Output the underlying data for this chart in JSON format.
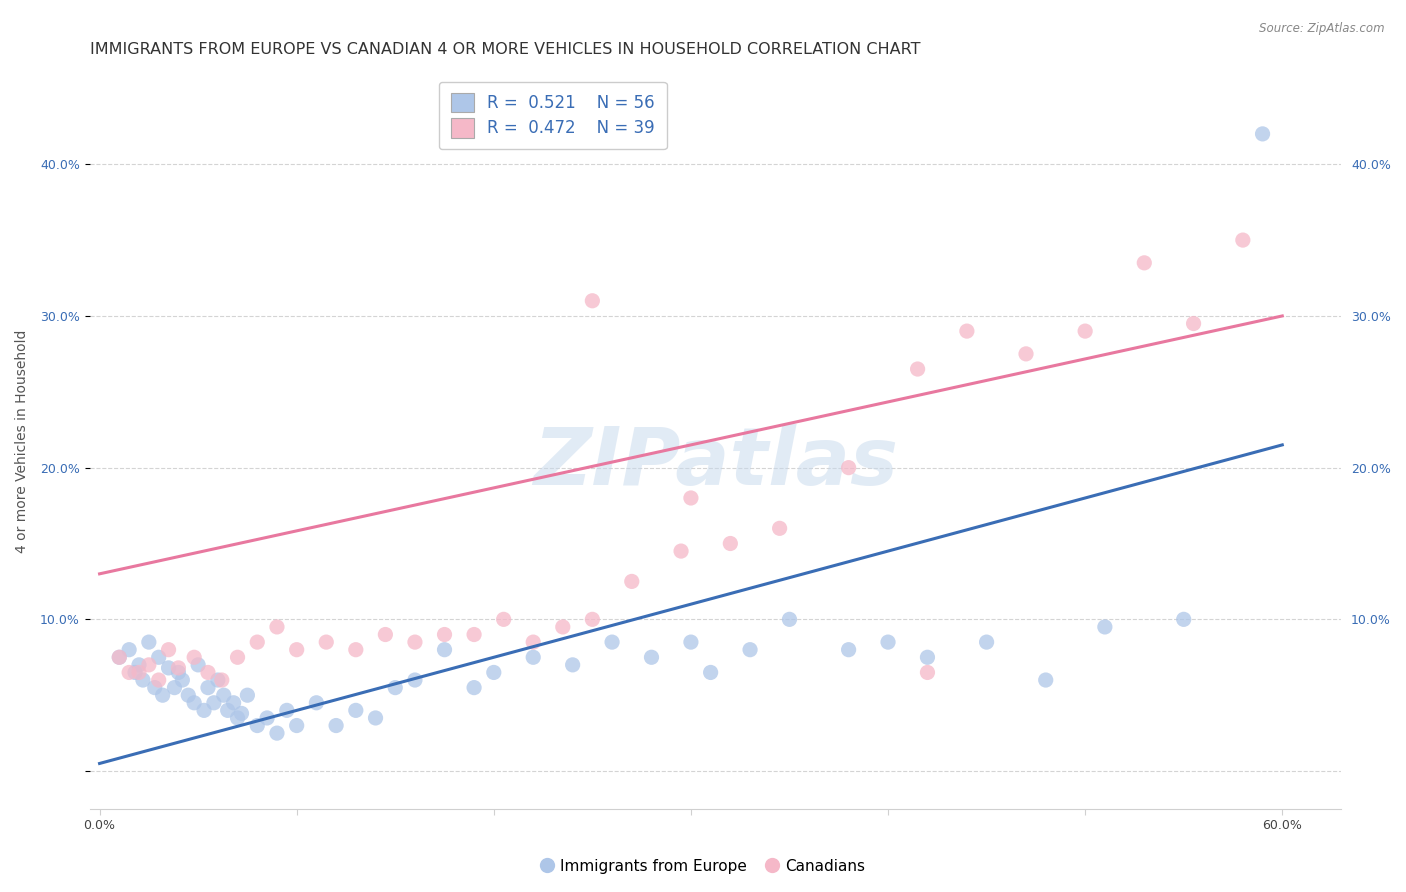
{
  "title": "IMMIGRANTS FROM EUROPE VS CANADIAN 4 OR MORE VEHICLES IN HOUSEHOLD CORRELATION CHART",
  "source": "Source: ZipAtlas.com",
  "ylabel": "4 or more Vehicles in Household",
  "xlim": [
    -0.005,
    0.63
  ],
  "ylim": [
    -0.025,
    0.46
  ],
  "xticks": [
    0.0,
    0.1,
    0.2,
    0.3,
    0.4,
    0.5,
    0.6
  ],
  "yticks": [
    0.0,
    0.1,
    0.2,
    0.3,
    0.4
  ],
  "xticklabels": [
    "0.0%",
    "",
    "",
    "",
    "",
    "",
    "60.0%"
  ],
  "yticklabels": [
    "",
    "10.0%",
    "20.0%",
    "30.0%",
    "40.0%"
  ],
  "blue_R": "0.521",
  "blue_N": "56",
  "pink_R": "0.472",
  "pink_N": "39",
  "blue_color": "#aec6e8",
  "pink_color": "#f5b8c8",
  "blue_line_color": "#3a6db5",
  "pink_line_color": "#e8789f",
  "watermark": "ZIPatlas",
  "blue_scatter_x": [
    0.01,
    0.015,
    0.018,
    0.02,
    0.022,
    0.025,
    0.028,
    0.03,
    0.032,
    0.035,
    0.038,
    0.04,
    0.042,
    0.045,
    0.048,
    0.05,
    0.053,
    0.055,
    0.058,
    0.06,
    0.063,
    0.065,
    0.068,
    0.07,
    0.072,
    0.075,
    0.08,
    0.085,
    0.09,
    0.095,
    0.1,
    0.11,
    0.12,
    0.13,
    0.14,
    0.15,
    0.16,
    0.175,
    0.19,
    0.2,
    0.22,
    0.24,
    0.26,
    0.28,
    0.3,
    0.31,
    0.33,
    0.35,
    0.38,
    0.4,
    0.42,
    0.45,
    0.48,
    0.51,
    0.55,
    0.59
  ],
  "blue_scatter_y": [
    0.075,
    0.08,
    0.065,
    0.07,
    0.06,
    0.085,
    0.055,
    0.075,
    0.05,
    0.068,
    0.055,
    0.065,
    0.06,
    0.05,
    0.045,
    0.07,
    0.04,
    0.055,
    0.045,
    0.06,
    0.05,
    0.04,
    0.045,
    0.035,
    0.038,
    0.05,
    0.03,
    0.035,
    0.025,
    0.04,
    0.03,
    0.045,
    0.03,
    0.04,
    0.035,
    0.055,
    0.06,
    0.08,
    0.055,
    0.065,
    0.075,
    0.07,
    0.085,
    0.075,
    0.085,
    0.065,
    0.08,
    0.1,
    0.08,
    0.085,
    0.075,
    0.085,
    0.06,
    0.095,
    0.1,
    0.42
  ],
  "pink_scatter_x": [
    0.01,
    0.015,
    0.02,
    0.025,
    0.03,
    0.035,
    0.04,
    0.048,
    0.055,
    0.062,
    0.07,
    0.08,
    0.09,
    0.1,
    0.115,
    0.13,
    0.145,
    0.16,
    0.175,
    0.19,
    0.205,
    0.22,
    0.235,
    0.25,
    0.27,
    0.295,
    0.32,
    0.345,
    0.38,
    0.415,
    0.44,
    0.47,
    0.5,
    0.53,
    0.555,
    0.58,
    0.3,
    0.25,
    0.42
  ],
  "pink_scatter_y": [
    0.075,
    0.065,
    0.065,
    0.07,
    0.06,
    0.08,
    0.068,
    0.075,
    0.065,
    0.06,
    0.075,
    0.085,
    0.095,
    0.08,
    0.085,
    0.08,
    0.09,
    0.085,
    0.09,
    0.09,
    0.1,
    0.085,
    0.095,
    0.1,
    0.125,
    0.145,
    0.15,
    0.16,
    0.2,
    0.265,
    0.29,
    0.275,
    0.29,
    0.335,
    0.295,
    0.35,
    0.18,
    0.31,
    0.065
  ],
  "blue_line_x": [
    0.0,
    0.6
  ],
  "blue_line_y": [
    0.005,
    0.215
  ],
  "pink_line_x": [
    0.0,
    0.6
  ],
  "pink_line_y": [
    0.13,
    0.3
  ],
  "grid_color": "#d0d0d0",
  "background_color": "#ffffff",
  "title_fontsize": 11.5,
  "axis_label_fontsize": 10,
  "tick_fontsize": 9,
  "legend_fontsize": 12
}
